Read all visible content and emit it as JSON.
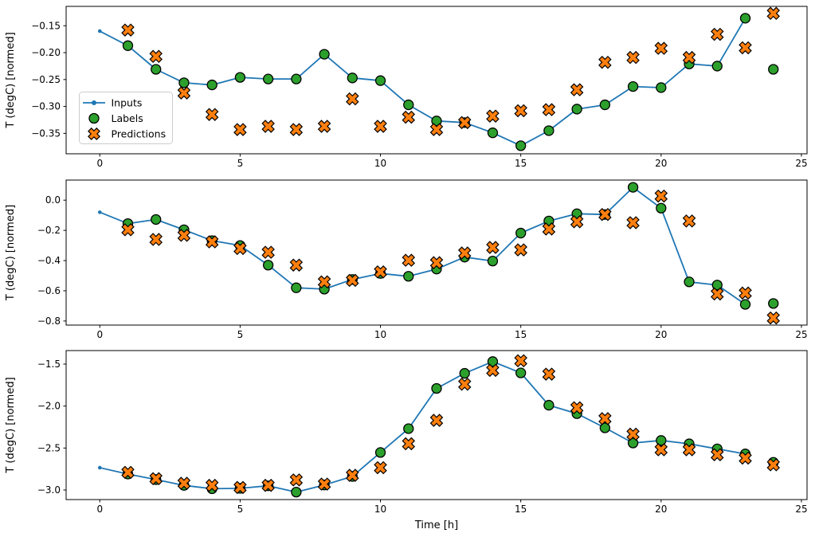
{
  "figure": {
    "xlabel": "Time [h]",
    "ylabel": "T (degC) [normed]",
    "colors": {
      "inputs": "#1f77b4",
      "labels": "#2ca02c",
      "predictions": "#ff7f0e",
      "marker_edge": "#000000",
      "spine": "#000000",
      "legend_border": "#cccccc",
      "background": "#ffffff"
    },
    "legend": {
      "entries": [
        {
          "key": "inputs",
          "label": "Inputs"
        },
        {
          "key": "labels",
          "label": "Labels"
        },
        {
          "key": "predictions",
          "label": "Predictions"
        }
      ]
    }
  },
  "chart_data": [
    {
      "type": "line",
      "title": "",
      "xlabel": "",
      "ylabel": "T (degC) [normed]",
      "xlim": [
        -1.2,
        25.2
      ],
      "ylim": [
        -0.388,
        -0.114
      ],
      "xticks": [
        0,
        5,
        10,
        15,
        20,
        25
      ],
      "xtick_labels": [
        "0",
        "5",
        "10",
        "15",
        "20",
        "25"
      ],
      "yticks": [
        -0.15,
        -0.2,
        -0.25,
        -0.3,
        -0.35
      ],
      "ytick_labels": [
        "−0.15",
        "−0.20",
        "−0.25",
        "−0.30",
        "−0.35"
      ],
      "grid": false,
      "legend": true,
      "series": [
        {
          "name": "Inputs",
          "kind": "line-dot",
          "x": [
            0,
            1,
            2,
            3,
            4,
            5,
            6,
            7,
            8,
            9,
            10,
            11,
            12,
            13,
            14,
            15,
            16,
            17,
            18,
            19,
            20,
            21,
            22,
            23
          ],
          "y": [
            -0.16,
            -0.187,
            -0.231,
            -0.256,
            -0.26,
            -0.246,
            -0.249,
            -0.249,
            -0.203,
            -0.247,
            -0.252,
            -0.297,
            -0.327,
            -0.33,
            -0.349,
            -0.373,
            -0.345,
            -0.305,
            -0.297,
            -0.263,
            -0.265,
            -0.221,
            -0.225,
            -0.136
          ]
        },
        {
          "name": "Labels",
          "kind": "circle",
          "x": [
            1,
            2,
            3,
            4,
            5,
            6,
            7,
            8,
            9,
            10,
            11,
            12,
            13,
            14,
            15,
            16,
            17,
            18,
            19,
            20,
            21,
            22,
            23,
            24
          ],
          "y": [
            -0.187,
            -0.231,
            -0.256,
            -0.26,
            -0.246,
            -0.249,
            -0.249,
            -0.203,
            -0.247,
            -0.252,
            -0.297,
            -0.327,
            -0.33,
            -0.349,
            -0.373,
            -0.345,
            -0.305,
            -0.297,
            -0.263,
            -0.265,
            -0.221,
            -0.225,
            -0.136,
            -0.231
          ]
        },
        {
          "name": "Predictions",
          "kind": "x-marker",
          "x": [
            1,
            2,
            3,
            4,
            5,
            6,
            7,
            8,
            9,
            10,
            11,
            12,
            13,
            14,
            15,
            16,
            17,
            18,
            19,
            20,
            21,
            22,
            23,
            24
          ],
          "y": [
            -0.158,
            -0.207,
            -0.275,
            -0.315,
            -0.343,
            -0.337,
            -0.343,
            -0.337,
            -0.286,
            -0.337,
            -0.32,
            -0.343,
            -0.33,
            -0.318,
            -0.308,
            -0.306,
            -0.269,
            -0.218,
            -0.209,
            -0.192,
            -0.209,
            -0.166,
            -0.191,
            -0.127
          ]
        }
      ]
    },
    {
      "type": "line",
      "title": "",
      "xlabel": "",
      "ylabel": "T (degC) [normed]",
      "xlim": [
        -1.2,
        25.2
      ],
      "ylim": [
        -0.827,
        0.133
      ],
      "xticks": [
        0,
        5,
        10,
        15,
        20,
        25
      ],
      "xtick_labels": [
        "0",
        "5",
        "10",
        "15",
        "20",
        "25"
      ],
      "yticks": [
        0.0,
        -0.2,
        -0.4,
        -0.6,
        -0.8
      ],
      "ytick_labels": [
        "0.0",
        "−0.2",
        "−0.4",
        "−0.6",
        "−0.8"
      ],
      "grid": false,
      "legend": false,
      "series": [
        {
          "name": "Inputs",
          "kind": "line-dot",
          "x": [
            0,
            1,
            2,
            3,
            4,
            5,
            6,
            7,
            8,
            9,
            10,
            11,
            12,
            13,
            14,
            15,
            16,
            17,
            18,
            19,
            20,
            21,
            22,
            23
          ],
          "y": [
            -0.08,
            -0.155,
            -0.128,
            -0.196,
            -0.268,
            -0.3,
            -0.43,
            -0.58,
            -0.589,
            -0.525,
            -0.485,
            -0.504,
            -0.456,
            -0.377,
            -0.403,
            -0.218,
            -0.138,
            -0.09,
            -0.095,
            0.085,
            -0.053,
            -0.541,
            -0.562,
            -0.69
          ]
        },
        {
          "name": "Labels",
          "kind": "circle",
          "x": [
            1,
            2,
            3,
            4,
            5,
            6,
            7,
            8,
            9,
            10,
            11,
            12,
            13,
            14,
            15,
            16,
            17,
            18,
            19,
            20,
            21,
            22,
            23,
            24
          ],
          "y": [
            -0.155,
            -0.128,
            -0.196,
            -0.268,
            -0.3,
            -0.43,
            -0.58,
            -0.589,
            -0.525,
            -0.485,
            -0.504,
            -0.456,
            -0.377,
            -0.403,
            -0.218,
            -0.138,
            -0.09,
            -0.095,
            0.085,
            -0.053,
            -0.541,
            -0.562,
            -0.69,
            -0.684
          ]
        },
        {
          "name": "Predictions",
          "kind": "x-marker",
          "x": [
            1,
            2,
            3,
            4,
            5,
            6,
            7,
            8,
            9,
            10,
            11,
            12,
            13,
            14,
            15,
            16,
            17,
            18,
            19,
            20,
            21,
            22,
            23,
            24
          ],
          "y": [
            -0.196,
            -0.26,
            -0.233,
            -0.276,
            -0.32,
            -0.345,
            -0.43,
            -0.541,
            -0.531,
            -0.475,
            -0.398,
            -0.414,
            -0.35,
            -0.313,
            -0.329,
            -0.191,
            -0.143,
            -0.095,
            -0.149,
            0.027,
            -0.138,
            -0.621,
            -0.615,
            -0.78
          ]
        }
      ]
    },
    {
      "type": "line",
      "title": "",
      "xlabel": "Time [h]",
      "ylabel": "T (degC) [normed]",
      "xlim": [
        -1.2,
        25.2
      ],
      "ylim": [
        -3.114,
        -1.339
      ],
      "xticks": [
        0,
        5,
        10,
        15,
        20,
        25
      ],
      "xtick_labels": [
        "0",
        "5",
        "10",
        "15",
        "20",
        "25"
      ],
      "yticks": [
        -1.5,
        -2.0,
        -2.5,
        -3.0
      ],
      "ytick_labels": [
        "−1.5",
        "−2.0",
        "−2.5",
        "−3.0"
      ],
      "grid": false,
      "legend": false,
      "series": [
        {
          "name": "Inputs",
          "kind": "line-dot",
          "x": [
            0,
            1,
            2,
            3,
            4,
            5,
            6,
            7,
            8,
            9,
            10,
            11,
            12,
            13,
            14,
            15,
            16,
            17,
            18,
            19,
            20,
            21,
            22,
            23
          ],
          "y": [
            -2.734,
            -2.81,
            -2.876,
            -2.945,
            -2.985,
            -2.98,
            -2.95,
            -3.025,
            -2.94,
            -2.838,
            -2.553,
            -2.269,
            -1.79,
            -1.61,
            -1.47,
            -1.605,
            -1.99,
            -2.09,
            -2.26,
            -2.44,
            -2.41,
            -2.45,
            -2.51,
            -2.57
          ]
        },
        {
          "name": "Labels",
          "kind": "circle",
          "x": [
            1,
            2,
            3,
            4,
            5,
            6,
            7,
            8,
            9,
            10,
            11,
            12,
            13,
            14,
            15,
            16,
            17,
            18,
            19,
            20,
            21,
            22,
            23,
            24
          ],
          "y": [
            -2.81,
            -2.876,
            -2.945,
            -2.985,
            -2.98,
            -2.95,
            -3.025,
            -2.94,
            -2.838,
            -2.553,
            -2.269,
            -1.79,
            -1.61,
            -1.47,
            -1.605,
            -1.99,
            -2.09,
            -2.26,
            -2.44,
            -2.41,
            -2.45,
            -2.51,
            -2.57,
            -2.67
          ]
        },
        {
          "name": "Predictions",
          "kind": "x-marker",
          "x": [
            1,
            2,
            3,
            4,
            5,
            6,
            7,
            8,
            9,
            10,
            11,
            12,
            13,
            14,
            15,
            16,
            17,
            18,
            19,
            20,
            21,
            22,
            23,
            24
          ],
          "y": [
            -2.79,
            -2.865,
            -2.92,
            -2.945,
            -2.97,
            -2.945,
            -2.88,
            -2.93,
            -2.825,
            -2.734,
            -2.449,
            -2.17,
            -1.74,
            -1.575,
            -1.46,
            -1.62,
            -2.02,
            -2.15,
            -2.335,
            -2.52,
            -2.52,
            -2.58,
            -2.62,
            -2.7
          ]
        }
      ]
    }
  ]
}
